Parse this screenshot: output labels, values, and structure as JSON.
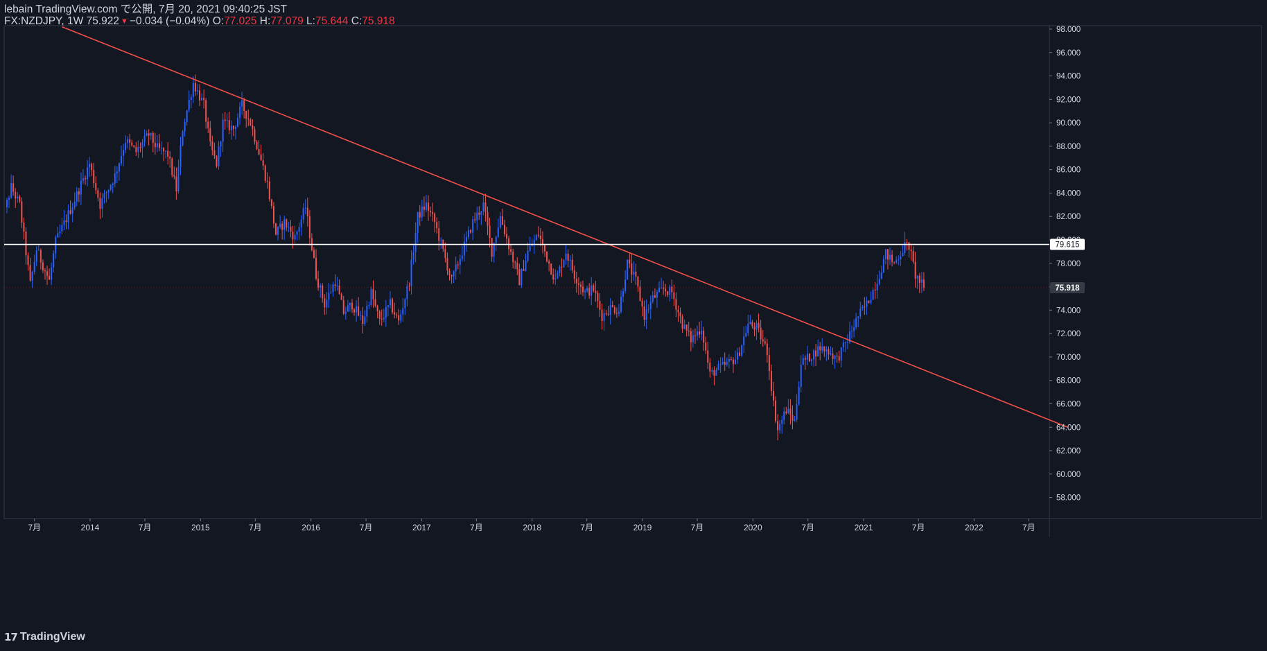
{
  "header": {
    "published_line": "lebain TradingView.com で公開, 7月 20, 2021 09:40:25 JST",
    "symbol": "FX:NZDJPY, 1W",
    "last_price": "75.922",
    "change": "−0.034 (−0.04%)",
    "open_label": "O:",
    "open": "77.025",
    "high_label": "H:",
    "high": "77.079",
    "low_label": "L:",
    "low": "75.644",
    "close_label": "C:",
    "close": "75.918"
  },
  "footer": {
    "logo_text": "TradingView",
    "logo_icon": "tradingview-logo-icon"
  },
  "colors": {
    "background": "#131722",
    "up": "#2962ff",
    "down": "#ef5350",
    "trendline": "#f0504a",
    "hline": "#ffffff",
    "axis_text": "#d1d4dc"
  },
  "chart_data": {
    "type": "candlestick",
    "title": "FX:NZDJPY, 1W",
    "ylim": [
      56.0,
      98.5
    ],
    "y_ticks": [
      "98.000",
      "96.000",
      "94.000",
      "92.000",
      "90.000",
      "88.000",
      "86.000",
      "84.000",
      "82.000",
      "80.000",
      "78.000",
      "76.000",
      "74.000",
      "72.000",
      "70.000",
      "68.000",
      "66.000",
      "64.000",
      "62.000",
      "60.000",
      "58.000"
    ],
    "x_ticks": [
      {
        "label": "7月",
        "date": "2013-07-01"
      },
      {
        "label": "2014",
        "date": "2014-01-01"
      },
      {
        "label": "7月",
        "date": "2014-07-01"
      },
      {
        "label": "2015",
        "date": "2015-01-01"
      },
      {
        "label": "7月",
        "date": "2015-07-01"
      },
      {
        "label": "2016",
        "date": "2016-01-01"
      },
      {
        "label": "7月",
        "date": "2016-07-01"
      },
      {
        "label": "2017",
        "date": "2017-01-01"
      },
      {
        "label": "7月",
        "date": "2017-07-01"
      },
      {
        "label": "2018",
        "date": "2018-01-01"
      },
      {
        "label": "7月",
        "date": "2018-07-01"
      },
      {
        "label": "2019",
        "date": "2019-01-01"
      },
      {
        "label": "7月",
        "date": "2019-07-01"
      },
      {
        "label": "2020",
        "date": "2020-01-01"
      },
      {
        "label": "7月",
        "date": "2020-07-01"
      },
      {
        "label": "2021",
        "date": "2021-01-01"
      },
      {
        "label": "7月",
        "date": "2021-07-01"
      },
      {
        "label": "2022",
        "date": "2022-01-01"
      },
      {
        "label": "7月",
        "date": "2022-07-01"
      }
    ],
    "price_path": [
      [
        "2013-03-04",
        80.5
      ],
      [
        "2013-04-15",
        84.5
      ],
      [
        "2013-05-13",
        83.0
      ],
      [
        "2013-06-17",
        76.2
      ],
      [
        "2013-07-08",
        79.2
      ],
      [
        "2013-08-19",
        76.5
      ],
      [
        "2013-09-09",
        79.8
      ],
      [
        "2013-11-04",
        83.0
      ],
      [
        "2013-12-30",
        86.5
      ],
      [
        "2014-02-03",
        83.0
      ],
      [
        "2014-03-24",
        85.5
      ],
      [
        "2014-04-28",
        88.5
      ],
      [
        "2014-06-02",
        87.5
      ],
      [
        "2014-07-14",
        89.0
      ],
      [
        "2014-08-11",
        87.8
      ],
      [
        "2014-09-15",
        87.3
      ],
      [
        "2014-10-13",
        84.3
      ],
      [
        "2014-11-03",
        89.5
      ],
      [
        "2014-12-08",
        93.4
      ],
      [
        "2015-01-12",
        91.5
      ],
      [
        "2015-02-02",
        88.0
      ],
      [
        "2015-02-23",
        86.5
      ],
      [
        "2015-03-16",
        90.0
      ],
      [
        "2015-04-20",
        89.5
      ],
      [
        "2015-05-18",
        91.5
      ],
      [
        "2015-06-15",
        90.0
      ],
      [
        "2015-07-13",
        87.5
      ],
      [
        "2015-08-10",
        84.8
      ],
      [
        "2015-09-07",
        80.5
      ],
      [
        "2015-10-05",
        81.5
      ],
      [
        "2015-11-09",
        80.2
      ],
      [
        "2015-12-14",
        82.8
      ],
      [
        "2016-01-18",
        77.0
      ],
      [
        "2016-02-15",
        74.5
      ],
      [
        "2016-03-21",
        76.5
      ],
      [
        "2016-04-18",
        73.8
      ],
      [
        "2016-05-16",
        74.5
      ],
      [
        "2016-06-20",
        73.0
      ],
      [
        "2016-07-18",
        75.5
      ],
      [
        "2016-08-15",
        73.0
      ],
      [
        "2016-09-19",
        74.5
      ],
      [
        "2016-10-17",
        73.0
      ],
      [
        "2016-11-21",
        76.5
      ],
      [
        "2016-12-19",
        82.0
      ],
      [
        "2017-01-16",
        83.0
      ],
      [
        "2017-02-13",
        81.5
      ],
      [
        "2017-03-13",
        79.0
      ],
      [
        "2017-04-10",
        76.5
      ],
      [
        "2017-05-22",
        79.5
      ],
      [
        "2017-06-19",
        81.5
      ],
      [
        "2017-07-24",
        83.0
      ],
      [
        "2017-08-21",
        79.0
      ],
      [
        "2017-09-18",
        82.0
      ],
      [
        "2017-10-16",
        79.5
      ],
      [
        "2017-11-20",
        76.5
      ],
      [
        "2017-12-18",
        79.0
      ],
      [
        "2018-01-22",
        80.5
      ],
      [
        "2018-02-19",
        78.5
      ],
      [
        "2018-03-19",
        76.5
      ],
      [
        "2018-04-23",
        79.0
      ],
      [
        "2018-05-21",
        77.0
      ],
      [
        "2018-06-25",
        75.5
      ],
      [
        "2018-07-23",
        75.8
      ],
      [
        "2018-08-20",
        73.5
      ],
      [
        "2018-09-17",
        74.2
      ],
      [
        "2018-10-15",
        74.0
      ],
      [
        "2018-11-12",
        78.0
      ],
      [
        "2018-12-10",
        76.5
      ],
      [
        "2019-01-07",
        73.5
      ],
      [
        "2019-02-04",
        75.0
      ],
      [
        "2019-03-11",
        75.8
      ],
      [
        "2019-04-08",
        75.5
      ],
      [
        "2019-05-13",
        72.8
      ],
      [
        "2019-06-10",
        71.5
      ],
      [
        "2019-07-15",
        72.5
      ],
      [
        "2019-08-12",
        68.5
      ],
      [
        "2019-09-09",
        69.0
      ],
      [
        "2019-10-14",
        69.5
      ],
      [
        "2019-11-11",
        70.0
      ],
      [
        "2019-12-16",
        72.8
      ],
      [
        "2020-01-13",
        72.5
      ],
      [
        "2020-02-17",
        70.5
      ],
      [
        "2020-03-09",
        66.0
      ],
      [
        "2020-03-23",
        63.8
      ],
      [
        "2020-04-20",
        65.5
      ],
      [
        "2020-05-18",
        64.5
      ],
      [
        "2020-06-08",
        69.5
      ],
      [
        "2020-07-06",
        70.0
      ],
      [
        "2020-08-10",
        70.8
      ],
      [
        "2020-09-07",
        70.5
      ],
      [
        "2020-10-05",
        69.8
      ],
      [
        "2020-11-09",
        71.5
      ],
      [
        "2020-12-14",
        73.5
      ],
      [
        "2021-01-11",
        74.5
      ],
      [
        "2021-02-15",
        76.5
      ],
      [
        "2021-03-15",
        78.8
      ],
      [
        "2021-04-12",
        78.0
      ],
      [
        "2021-05-17",
        79.5
      ],
      [
        "2021-05-31",
        79.5
      ],
      [
        "2021-06-21",
        77.0
      ],
      [
        "2021-07-19",
        75.918
      ]
    ],
    "trendline": {
      "start": {
        "date": "2013-09-30",
        "price": 98.2
      },
      "end": {
        "date": "2022-11-07",
        "price": 64.0
      }
    },
    "horizontal_line": {
      "price": 79.615,
      "label": "79.615"
    },
    "last_price_line": {
      "price": 75.918,
      "label": "75.918"
    }
  }
}
